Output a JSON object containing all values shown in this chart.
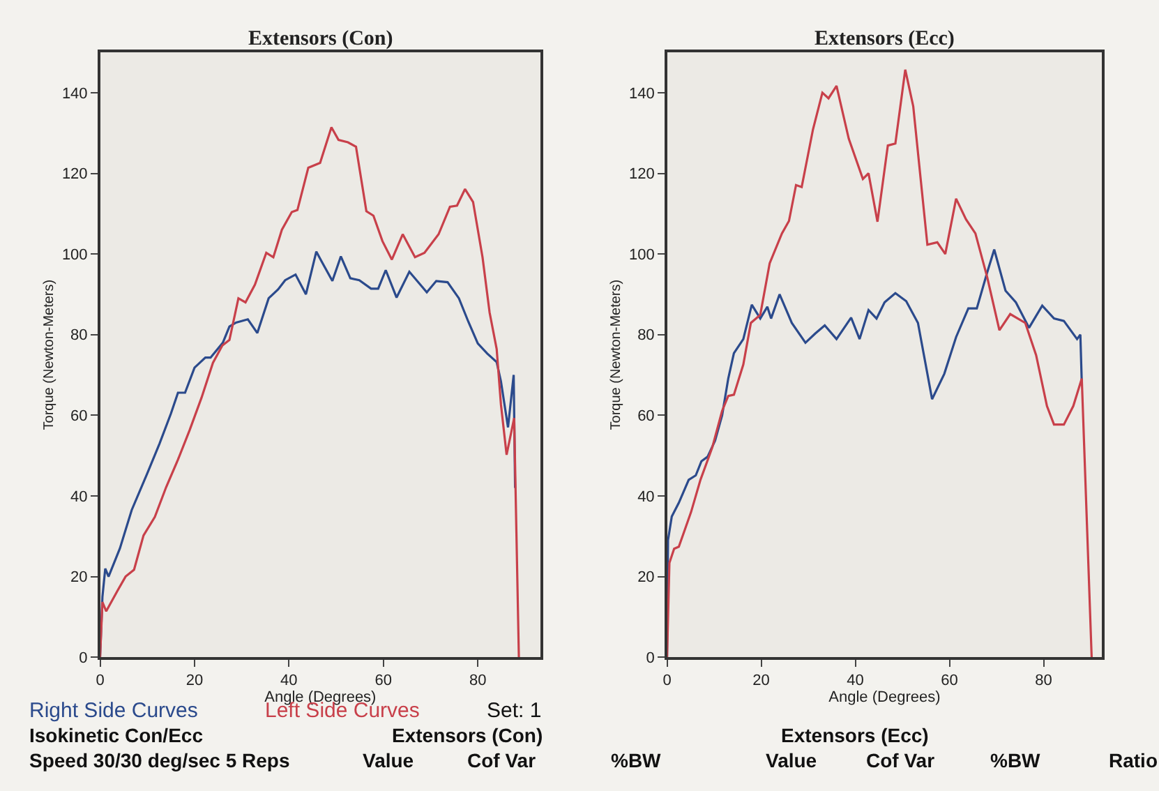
{
  "chart_data": [
    {
      "type": "line",
      "title": "Extensors (Con)",
      "xlabel": "Angle (Degrees)",
      "ylabel": "Torque (Newton-Meters)",
      "xlim": [
        0,
        93.3
      ],
      "xticks": [
        0,
        20,
        40,
        60,
        80
      ],
      "ylim": [
        0,
        150
      ],
      "yticks": [
        0,
        20,
        40,
        60,
        80,
        100,
        120,
        140
      ],
      "grid": false,
      "series": [
        {
          "name": "Right Side Curves",
          "color": "#2b4a8c",
          "x": [
            0,
            0.5,
            1.1,
            1.8,
            4.2,
            6.7,
            10,
            12.6,
            15,
            16.5,
            18,
            20,
            22.3,
            23.4,
            26,
            27.4,
            28.8,
            31.3,
            33.3,
            35.7,
            37.7,
            39.2,
            41.4,
            43.6,
            45.8,
            47,
            49.2,
            51,
            53,
            54.9,
            57.4,
            58.9,
            60.5,
            62.8,
            65.5,
            69.2,
            71.2,
            73.6,
            76,
            78,
            80,
            82,
            84,
            84.9,
            86.4,
            87.6,
            87.9
          ],
          "values": [
            0,
            15,
            22,
            20,
            27,
            36.5,
            45.6,
            53,
            60.4,
            65.6,
            65.6,
            71.8,
            74.3,
            74.3,
            78,
            82,
            83,
            83.8,
            80.4,
            89,
            91.2,
            93.5,
            94.9,
            90,
            100.6,
            98,
            93.3,
            99.4,
            94,
            93.5,
            91.4,
            91.4,
            96,
            89.2,
            95.6,
            90.5,
            93.3,
            93,
            89,
            83.2,
            77.8,
            75.3,
            73.2,
            68.4,
            57,
            70,
            42
          ]
        },
        {
          "name": "Left Side Curves",
          "color": "#c8404a",
          "x": [
            0,
            0.5,
            1.3,
            3.7,
            5.4,
            7.2,
            9.2,
            11.6,
            14,
            16.5,
            19,
            21.5,
            23.9,
            25.9,
            27.4,
            29.3,
            30.8,
            32.8,
            35.2,
            36.7,
            38.5,
            40.6,
            41.8,
            44.1,
            46.6,
            49,
            50.5,
            52.5,
            54.2,
            56.4,
            57.9,
            59.8,
            61.8,
            64.1,
            66.7,
            68.7,
            71.7,
            74.1,
            75.6,
            77.3,
            79,
            81,
            82.5,
            84,
            84.9,
            86.1,
            87.7,
            88.7
          ],
          "values": [
            0,
            13.7,
            11.4,
            16.5,
            20,
            21.7,
            30.2,
            34.8,
            42.2,
            49,
            56.4,
            64.4,
            73,
            77.3,
            78.7,
            89,
            88,
            92.4,
            100.3,
            99.2,
            106,
            110.4,
            110.9,
            121.4,
            122.6,
            131.4,
            128.3,
            127.7,
            126.6,
            110.6,
            109.5,
            103.2,
            98.6,
            104.9,
            99.2,
            100.3,
            104.9,
            111.7,
            112,
            116.1,
            112.9,
            99.2,
            85.5,
            76.4,
            62.7,
            50.2,
            59.3,
            0
          ]
        }
      ],
      "annotations": [
        "Set: 1",
        "Isokinetic Con/Ecc",
        "Extensors (Con)",
        "Speed 30/30 deg/sec 5 Reps",
        "Value",
        "Cof Var",
        "%BW"
      ]
    },
    {
      "type": "line",
      "title": "Extensors (Ecc)",
      "xlabel": "Angle (Degrees)",
      "ylabel": "Torque (Newton-Meters)",
      "xlim": [
        0,
        92.4
      ],
      "xticks": [
        0,
        20,
        40,
        60,
        80
      ],
      "ylim": [
        0,
        150
      ],
      "yticks": [
        0,
        20,
        40,
        60,
        80,
        100,
        120,
        140
      ],
      "grid": false,
      "series": [
        {
          "color": "#2b4a8c",
          "x": [
            0,
            0.2,
            1,
            2.5,
            4.6,
            6.1,
            7.3,
            8.6,
            10.2,
            11.7,
            13,
            14.2,
            16.2,
            18,
            19.8,
            21.3,
            22.1,
            23.9,
            26.5,
            29.4,
            31.5,
            33.5,
            36,
            39.1,
            40.9,
            42.8,
            44.5,
            46.2,
            48.5,
            50.8,
            53.3,
            56.3,
            58.9,
            61.4,
            64,
            65.8,
            68,
            69.5,
            71.9,
            74.1,
            76.9,
            79.7,
            82.2,
            84.3,
            87.1,
            87.8,
            88.1
          ],
          "values": [
            0,
            29,
            34.9,
            38.3,
            44,
            45.1,
            48.6,
            49.7,
            53.7,
            60,
            69.1,
            75.4,
            78.9,
            87.4,
            84,
            86.9,
            84,
            90,
            82.9,
            78,
            80.3,
            82.3,
            78.9,
            84.2,
            78.9,
            86.1,
            84,
            88,
            90.3,
            88.3,
            82.9,
            64,
            70.3,
            79.4,
            86.5,
            86.5,
            95.4,
            101.1,
            90.9,
            88,
            81.7,
            87.2,
            84,
            83.4,
            78.9,
            80,
            68
          ]
        },
        {
          "color": "#c8404a",
          "x": [
            0,
            0.5,
            1.5,
            2.5,
            5.1,
            7.1,
            9.6,
            11.7,
            13,
            14.2,
            16.2,
            17.8,
            19.8,
            21.8,
            24.4,
            25.9,
            27.4,
            28.6,
            31,
            33,
            34.3,
            36,
            38.6,
            41.6,
            42.8,
            44.7,
            46.9,
            48.5,
            50.6,
            52.3,
            55.3,
            57.4,
            59.1,
            61.4,
            63.5,
            65.5,
            68,
            70.6,
            72.9,
            76.1,
            78.4,
            80.7,
            82.2,
            84.3,
            86.3,
            88.1,
            90.2
          ],
          "values": [
            0,
            23.4,
            26.9,
            27.4,
            36,
            44,
            52,
            61.1,
            64.8,
            65.1,
            72.6,
            82.9,
            84.9,
            97.7,
            105.1,
            108.2,
            117.1,
            116.6,
            130.9,
            140,
            138.6,
            141.7,
            128.6,
            118.6,
            120,
            108,
            126.9,
            127.4,
            145.7,
            136.6,
            102.3,
            102.9,
            100,
            113.7,
            108.6,
            105.1,
            94.3,
            81.1,
            85.1,
            82.9,
            74.9,
            62.3,
            57.7,
            57.7,
            62.3,
            69.1,
            0
          ]
        }
      ],
      "annotations": [
        "Extensors (Ecc)",
        "Value",
        "Cof Var",
        "%BW",
        "Ratio"
      ]
    }
  ]
}
